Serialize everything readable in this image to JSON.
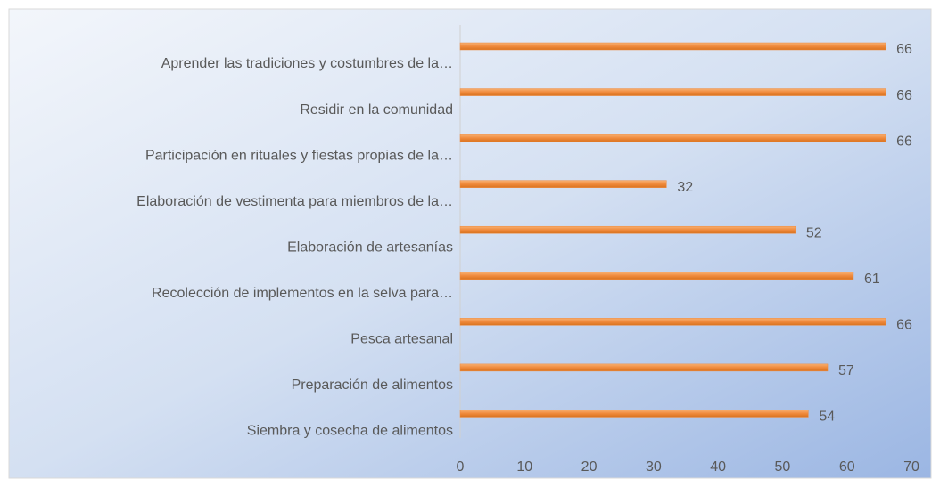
{
  "chart_data": {
    "type": "bar",
    "orientation": "horizontal",
    "categories": [
      "Aprender las tradiciones y costumbres de la…",
      "Residir en la comunidad",
      "Participación en rituales y fiestas propias de la…",
      "Elaboración de vestimenta para miembros de la…",
      "Elaboración de artesanías",
      "Recolección de implementos en la selva para…",
      "Pesca artesanal",
      "Preparación de alimentos",
      "Siembra y cosecha de alimentos"
    ],
    "values": [
      66,
      66,
      66,
      32,
      52,
      61,
      66,
      57,
      54
    ],
    "color": "#f08a3c",
    "xlim": [
      0,
      70
    ],
    "xticks": [
      0,
      10,
      20,
      30,
      40,
      50,
      60,
      70
    ]
  }
}
